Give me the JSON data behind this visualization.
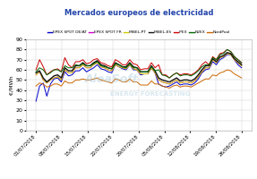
{
  "title": "Mercados europeos de electricidad",
  "ylabel": "€/MWh",
  "ylim": [
    0,
    90
  ],
  "yticks": [
    0,
    10,
    20,
    30,
    40,
    50,
    60,
    70,
    80,
    90
  ],
  "xlabels": [
    "01/07/2018",
    "08/07/2018",
    "15/07/2018",
    "22/07/2018",
    "29/07/2018",
    "05/08/2018",
    "12/08/2018",
    "19/08/2018",
    "26/08/2018"
  ],
  "series": {
    "EPEX SPOT DE/AT": {
      "color": "#0000cc",
      "lw": 0.7,
      "values": [
        29,
        44,
        47,
        34,
        46,
        51,
        52,
        48,
        58,
        54,
        55,
        59,
        59,
        62,
        58,
        60,
        62,
        65,
        61,
        60,
        58,
        57,
        65,
        63,
        61,
        60,
        65,
        60,
        60,
        55,
        56,
        56,
        62,
        57,
        46,
        44,
        43,
        44,
        46,
        48,
        45,
        46,
        46,
        45,
        47,
        51,
        57,
        60,
        61,
        68,
        65,
        70,
        72,
        75,
        75,
        70,
        65,
        62
      ]
    },
    "EPEX SPOT FR": {
      "color": "#cc00cc",
      "lw": 0.7,
      "values": [
        55,
        58,
        50,
        47,
        50,
        52,
        53,
        50,
        60,
        57,
        57,
        62,
        62,
        65,
        62,
        62,
        65,
        67,
        63,
        62,
        60,
        59,
        65,
        63,
        62,
        61,
        65,
        61,
        60,
        56,
        56,
        56,
        62,
        57,
        50,
        48,
        47,
        46,
        48,
        50,
        47,
        48,
        48,
        47,
        49,
        53,
        58,
        62,
        62,
        70,
        67,
        72,
        73,
        76,
        75,
        70,
        67,
        64
      ]
    },
    "MIBEL-PT": {
      "color": "#cccc00",
      "lw": 0.7,
      "values": [
        55,
        58,
        50,
        47,
        50,
        52,
        53,
        50,
        60,
        57,
        57,
        62,
        62,
        65,
        62,
        62,
        65,
        67,
        63,
        62,
        60,
        59,
        65,
        63,
        62,
        61,
        65,
        61,
        60,
        56,
        56,
        56,
        62,
        57,
        50,
        48,
        47,
        46,
        48,
        50,
        47,
        48,
        48,
        47,
        49,
        53,
        58,
        62,
        62,
        70,
        67,
        72,
        73,
        76,
        75,
        70,
        67,
        64
      ]
    },
    "MIBEL-ES": {
      "color": "#111111",
      "lw": 1.0,
      "values": [
        57,
        59,
        52,
        48,
        51,
        54,
        55,
        52,
        62,
        59,
        59,
        64,
        64,
        67,
        64,
        64,
        67,
        69,
        65,
        64,
        62,
        61,
        67,
        65,
        63,
        63,
        67,
        63,
        62,
        58,
        58,
        58,
        64,
        59,
        52,
        50,
        49,
        48,
        50,
        52,
        49,
        50,
        50,
        49,
        51,
        55,
        60,
        64,
        64,
        71,
        68,
        73,
        74,
        77,
        76,
        71,
        68,
        65
      ]
    },
    "IPEX": {
      "color": "#cc0000",
      "lw": 0.7,
      "values": [
        60,
        70,
        63,
        55,
        58,
        60,
        61,
        58,
        72,
        65,
        62,
        68,
        68,
        70,
        66,
        67,
        70,
        71,
        67,
        66,
        64,
        63,
        70,
        68,
        65,
        65,
        70,
        66,
        65,
        60,
        61,
        61,
        67,
        62,
        65,
        55,
        55,
        52,
        55,
        57,
        55,
        56,
        56,
        55,
        57,
        60,
        65,
        68,
        65,
        73,
        70,
        76,
        77,
        80,
        78,
        73,
        70,
        67
      ]
    },
    "N2EX": {
      "color": "#006400",
      "lw": 0.7,
      "values": [
        58,
        62,
        60,
        55,
        57,
        60,
        60,
        58,
        64,
        62,
        62,
        65,
        64,
        66,
        64,
        64,
        66,
        68,
        64,
        63,
        62,
        61,
        66,
        65,
        63,
        62,
        66,
        62,
        62,
        58,
        58,
        58,
        63,
        59,
        60,
        55,
        54,
        52,
        55,
        57,
        54,
        55,
        55,
        54,
        56,
        59,
        63,
        65,
        65,
        72,
        70,
        75,
        76,
        80,
        78,
        73,
        70,
        67
      ]
    },
    "NordPool": {
      "color": "#cc6600",
      "lw": 0.7,
      "values": [
        44,
        47,
        46,
        43,
        44,
        46,
        46,
        44,
        49,
        47,
        47,
        50,
        50,
        51,
        50,
        50,
        51,
        52,
        50,
        49,
        48,
        47,
        51,
        50,
        48,
        48,
        51,
        48,
        48,
        45,
        45,
        45,
        49,
        46,
        46,
        44,
        43,
        42,
        44,
        45,
        43,
        44,
        44,
        43,
        45,
        47,
        49,
        51,
        51,
        55,
        54,
        57,
        58,
        60,
        59,
        56,
        54,
        52
      ]
    }
  },
  "watermark1": "AleaSoft",
  "watermark2": "ENERGY FORECASTING",
  "background_color": "#ffffff",
  "grid_color": "#cccccc",
  "title_color": "#2244aa",
  "title_fontsize": 6.0,
  "legend_fontsize": 3.2,
  "ylabel_fontsize": 4.5,
  "ytick_fontsize": 4.5,
  "xtick_fontsize": 4.0
}
